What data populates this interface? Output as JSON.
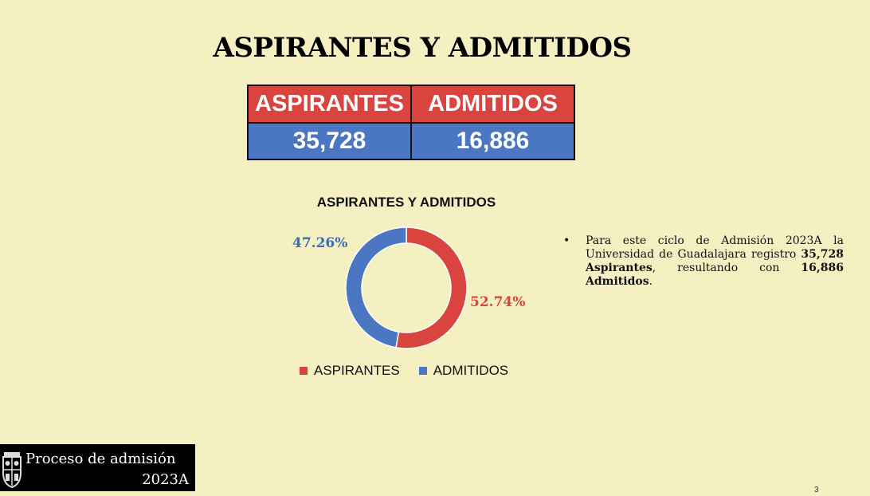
{
  "title": "ASPIRANTES Y ADMITIDOS",
  "summary_table": {
    "headers": [
      "ASPIRANTES",
      "ADMITIDOS"
    ],
    "values": [
      "35,728",
      "16,886"
    ]
  },
  "chart_data": {
    "type": "pie",
    "title": "ASPIRANTES Y ADMITIDOS",
    "categories": [
      "ASPIRANTES",
      "ADMITIDOS"
    ],
    "values": [
      52.74,
      47.26
    ],
    "data_labels": [
      "52.74%",
      "47.26%"
    ],
    "colors": [
      "#d9443f",
      "#4a76c2"
    ],
    "legend_position": "bottom"
  },
  "bullet": {
    "text_1": "Para este ciclo de Admisión 2023A la Universidad de Guadalajara registro ",
    "bold_1": "35,728 Aspirantes",
    "text_2": ", resultando con ",
    "bold_2": "16,886 Admitidos",
    "text_3": "."
  },
  "footer": {
    "line1": "Proceso de admisión",
    "line2": "2023A"
  },
  "page_number": "3",
  "icons": {
    "logo": "university-seal-icon"
  }
}
